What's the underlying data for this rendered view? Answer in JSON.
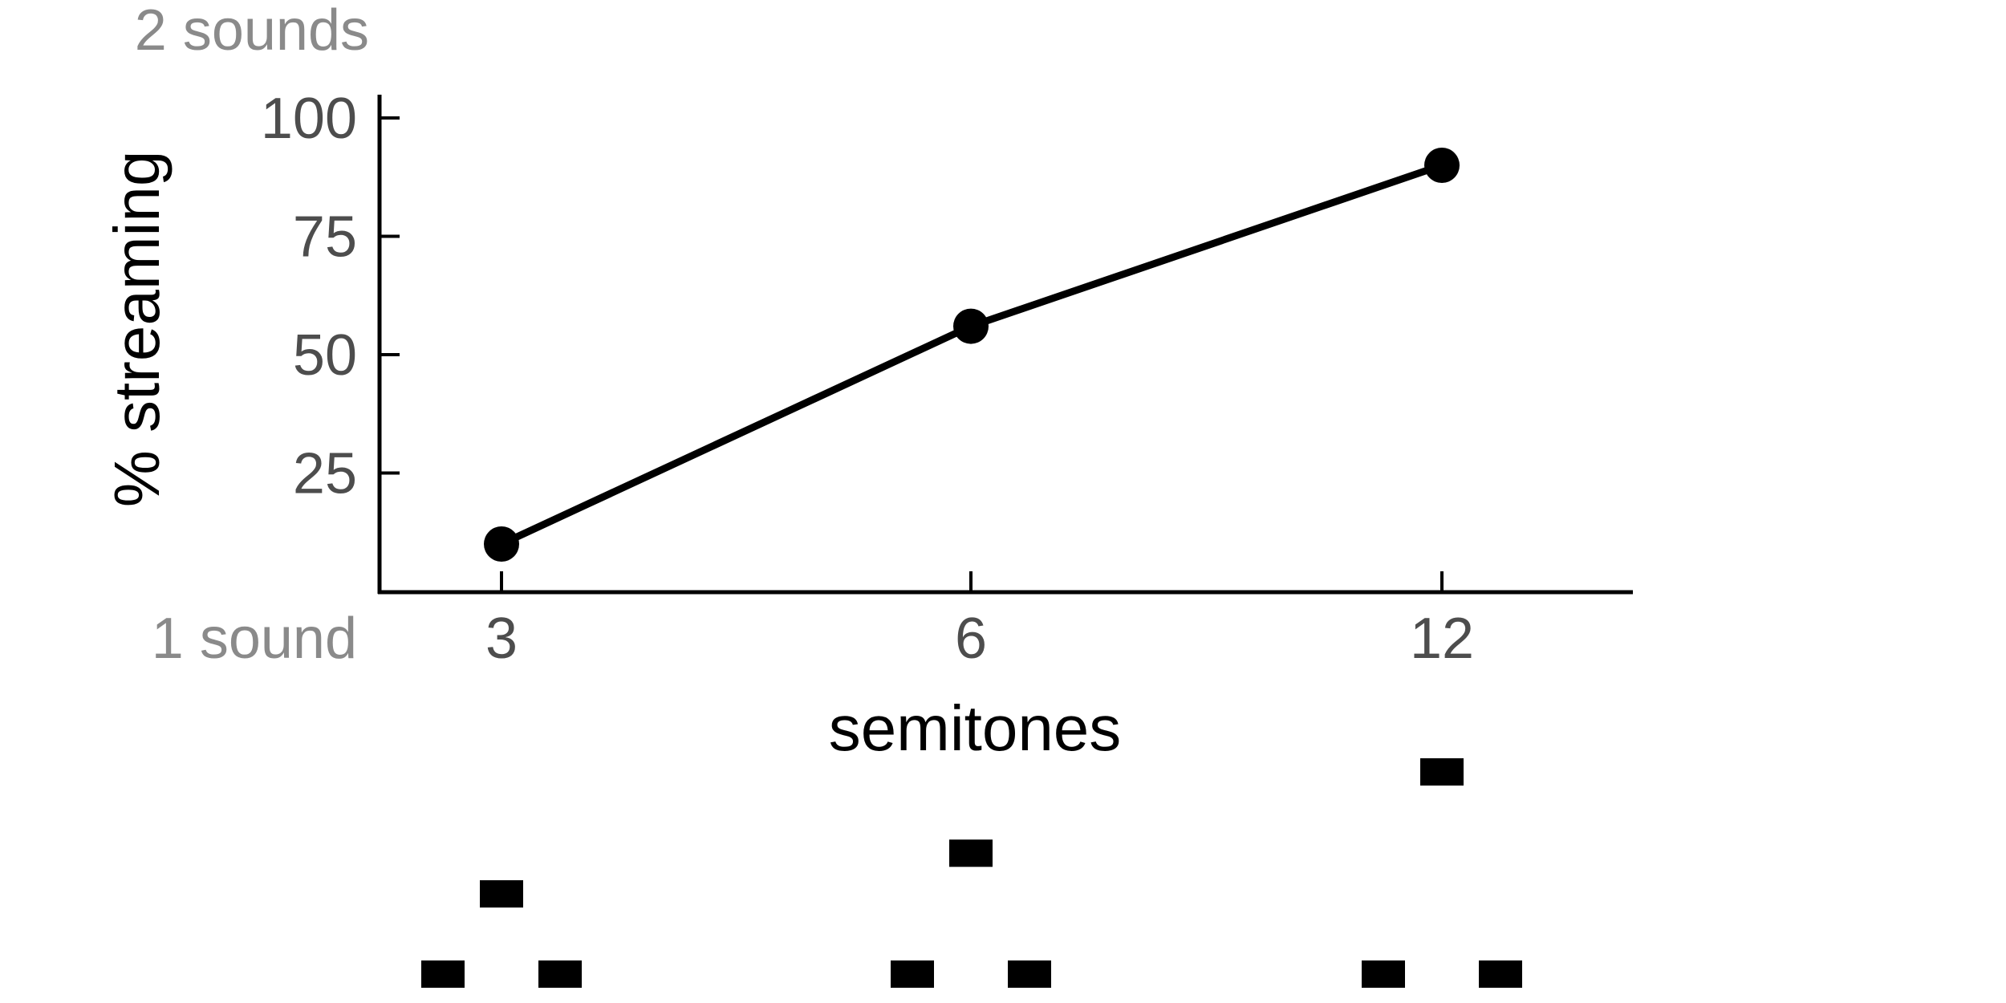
{
  "chart_data": {
    "type": "line",
    "xlabel": "semitones",
    "ylabel": "% streaming",
    "x": [
      3,
      6,
      12
    ],
    "x_tick_labels": [
      "3",
      "6",
      "12"
    ],
    "series": [
      {
        "values": [
          10,
          56,
          90
        ]
      }
    ],
    "yticks": [
      25,
      50,
      75,
      100
    ],
    "ylim": [
      0,
      100
    ],
    "annotations": {
      "top": "2 sounds",
      "bottom": "1 sound"
    },
    "line_color": "#000000",
    "grid": false,
    "legend": "none",
    "tone_patterns": [
      {
        "semitones": 3
      },
      {
        "semitones": 6
      },
      {
        "semitones": 12
      }
    ]
  }
}
